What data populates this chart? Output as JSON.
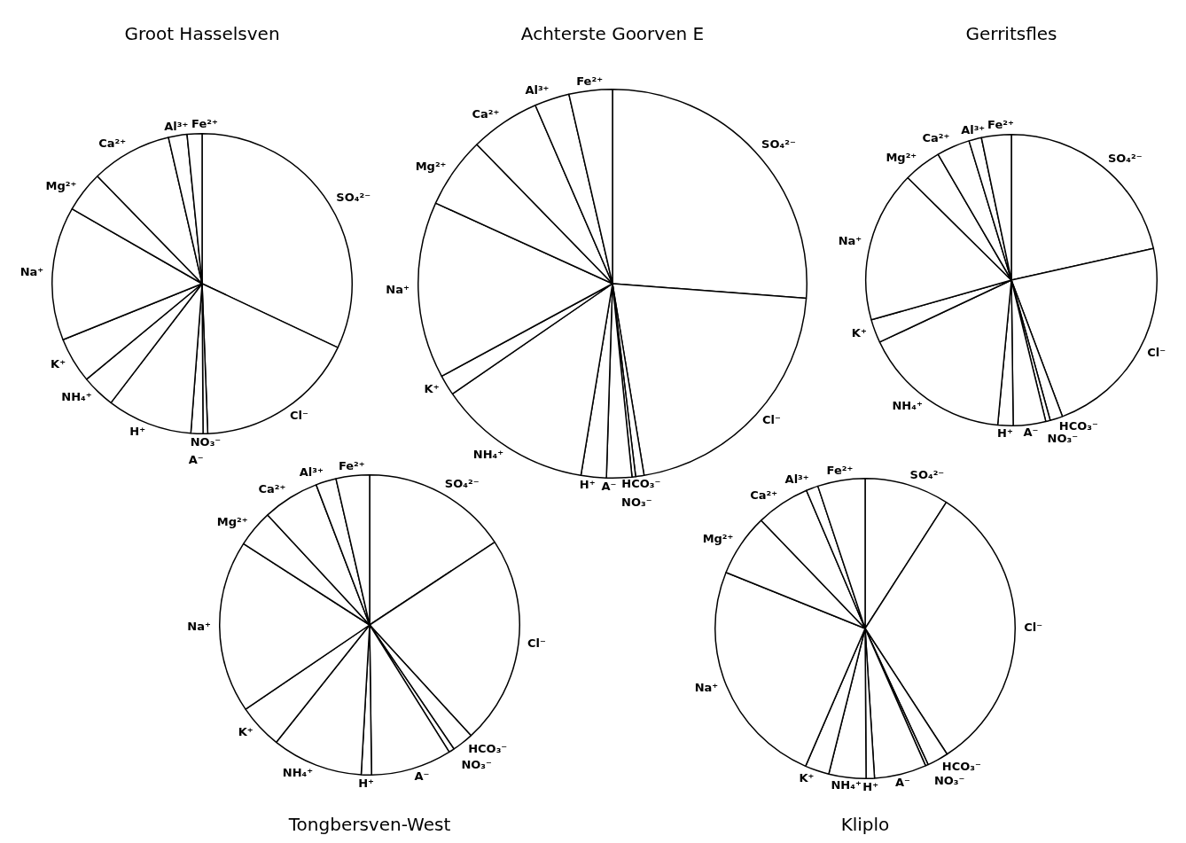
{
  "chart_data": [
    {
      "type": "pie",
      "title": "Groot Hasselsven",
      "categories": [
        "SO₄²⁻",
        "Cl⁻",
        "NO₃⁻",
        "A⁻",
        "H⁺",
        "NH₄⁺",
        "K⁺",
        "Na⁺",
        "Mg²⁺",
        "Ca²⁺",
        "Al³⁺",
        "Fe²⁺"
      ],
      "values": [
        32,
        17.4,
        0.5,
        1.3,
        9.2,
        3.6,
        4.9,
        14.4,
        4.4,
        8.7,
        2.0,
        1.6
      ],
      "colors": [
        "#ffffff",
        "#ffffff",
        "#ffffff",
        "#ffffff",
        "#ffffff",
        "#ffffff",
        "#ffffff",
        "#ffffff",
        "#ffffff",
        "#ffffff",
        "#ffffff",
        "#ffffff"
      ]
    },
    {
      "type": "pie",
      "title": "Achterste Goorven E",
      "categories": [
        "SO₄²⁻",
        "Cl⁻",
        "HCO₃⁻",
        "NO₃⁻",
        "A⁻",
        "H⁺",
        "NH₄⁺",
        "K⁺",
        "Na⁺",
        "Mg²⁺",
        "Ca²⁺",
        "Al³⁺",
        "Fe²⁺"
      ],
      "values": [
        26.2,
        21.2,
        0.7,
        0.3,
        2.1,
        2.1,
        12.8,
        1.7,
        14.7,
        5.9,
        5.8,
        2.9,
        3.6
      ],
      "colors": [
        "#ffffff",
        "#ffffff",
        "#ffffff",
        "#ffffff",
        "#ffffff",
        "#ffffff",
        "#ffffff",
        "#ffffff",
        "#ffffff",
        "#ffffff",
        "#ffffff",
        "#ffffff",
        "#ffffff"
      ]
    },
    {
      "type": "pie",
      "title": "Gerritsfles",
      "categories": [
        "SO₄²⁻",
        "Cl⁻",
        "HCO₃⁻",
        "NO₃⁻",
        "A⁻",
        "H⁺",
        "NH₄⁺",
        "K⁺",
        "Na⁺",
        "Mg²⁺",
        "Ca²⁺",
        "Al³⁺",
        "Fe²⁺"
      ],
      "values": [
        21.5,
        22.8,
        1.4,
        0.5,
        3.6,
        1.7,
        16.5,
        2.6,
        16.8,
        4.2,
        3.7,
        1.4,
        3.3
      ],
      "colors": [
        "#ffffff",
        "#ffffff",
        "#ffffff",
        "#ffffff",
        "#ffffff",
        "#ffffff",
        "#ffffff",
        "#ffffff",
        "#ffffff",
        "#ffffff",
        "#ffffff",
        "#ffffff",
        "#ffffff"
      ]
    },
    {
      "type": "pie",
      "title": "Tongbersven-West",
      "categories": [
        "SO₄²⁻",
        "Cl⁻",
        "HCO₃⁻",
        "NO₃⁻",
        "A⁻",
        "H⁺",
        "NH₄⁺",
        "K⁺",
        "Na⁺",
        "Mg²⁺",
        "Ca²⁺",
        "Al³⁺",
        "Fe²⁺"
      ],
      "values": [
        15.7,
        22.5,
        2.3,
        0.6,
        8.7,
        1.1,
        9.8,
        4.8,
        18.6,
        4.0,
        6.1,
        2.2,
        3.6
      ],
      "colors": [
        "#ffffff",
        "#ffffff",
        "#ffffff",
        "#ffffff",
        "#ffffff",
        "#ffffff",
        "#ffffff",
        "#ffffff",
        "#ffffff",
        "#ffffff",
        "#ffffff",
        "#ffffff",
        "#ffffff"
      ]
    },
    {
      "type": "pie",
      "title": "Kliplo",
      "categories": [
        "SO₄²⁻",
        "Cl⁻",
        "HCO₃⁻",
        "NO₃⁻",
        "A⁻",
        "H⁺",
        "NH₄⁺",
        "K⁺",
        "Na⁺",
        "Mg²⁺",
        "Ca²⁺",
        "Al³⁺",
        "Fe²⁺"
      ],
      "values": [
        9.1,
        31.7,
        2.3,
        0.3,
        5.6,
        0.9,
        4.0,
        2.6,
        24.6,
        6.7,
        5.8,
        1.3,
        5.1
      ],
      "colors": [
        "#ffffff",
        "#ffffff",
        "#ffffff",
        "#ffffff",
        "#ffffff",
        "#ffffff",
        "#ffffff",
        "#ffffff",
        "#ffffff",
        "#ffffff",
        "#ffffff",
        "#ffffff",
        "#ffffff"
      ]
    }
  ]
}
